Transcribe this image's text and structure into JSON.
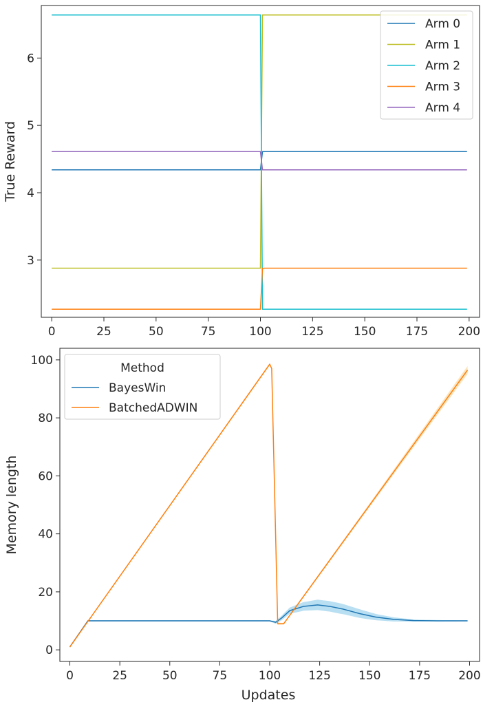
{
  "chart_data": [
    {
      "type": "line",
      "title": "",
      "xlabel": "",
      "ylabel": "True Reward",
      "xlim": [
        -5,
        205
      ],
      "ylim": [
        2.15,
        6.78
      ],
      "xticks": [
        0,
        25,
        50,
        75,
        100,
        125,
        150,
        175,
        200
      ],
      "yticks": [
        3,
        4,
        5,
        6
      ],
      "change_point": [
        100,
        101
      ],
      "legend_position": "top-right",
      "series": [
        {
          "name": "Arm 0",
          "color": "#1f77b4",
          "before": 4.34,
          "after": 4.61
        },
        {
          "name": "Arm 1",
          "color": "#bcbd22",
          "before": 2.88,
          "after": 6.64
        },
        {
          "name": "Arm 2",
          "color": "#17becf",
          "before": 6.64,
          "after": 2.27
        },
        {
          "name": "Arm 3",
          "color": "#ff7f0e",
          "before": 2.27,
          "after": 2.88
        },
        {
          "name": "Arm 4",
          "color": "#9467bd",
          "before": 4.61,
          "after": 4.34
        }
      ]
    },
    {
      "type": "line",
      "title": "",
      "xlabel": "Updates",
      "ylabel": "Memory length",
      "xlim": [
        -5,
        205
      ],
      "ylim": [
        -4,
        104
      ],
      "xticks": [
        0,
        25,
        50,
        75,
        100,
        125,
        150,
        175,
        200
      ],
      "yticks": [
        0,
        20,
        40,
        60,
        80,
        100
      ],
      "legend_title": "Method",
      "legend_position": "top-left",
      "series": [
        {
          "name": "BayesWin",
          "color": "#1f77b4",
          "band_color": "#7fc4e8",
          "points": [
            [
              0,
              1
            ],
            [
              9,
              10
            ],
            [
              100,
              10
            ],
            [
              103,
              9.5
            ],
            [
              106,
              11
            ],
            [
              110,
              13.5
            ],
            [
              117,
              15
            ],
            [
              124,
              15.5
            ],
            [
              130,
              15
            ],
            [
              137,
              14
            ],
            [
              145,
              12.5
            ],
            [
              153,
              11.3
            ],
            [
              162,
              10.5
            ],
            [
              172,
              10.1
            ],
            [
              185,
              10
            ],
            [
              199,
              10
            ]
          ],
          "band": [
            [
              100,
              0.2
            ],
            [
              106,
              0.8
            ],
            [
              115,
              1.4
            ],
            [
              124,
              1.8
            ],
            [
              135,
              1.8
            ],
            [
              145,
              1.5
            ],
            [
              155,
              1.0
            ],
            [
              165,
              0.6
            ],
            [
              175,
              0.3
            ],
            [
              199,
              0.2
            ]
          ]
        },
        {
          "name": "BatchedADWIN",
          "color": "#ff7f0e",
          "band_color": "#f5cf86",
          "points": [
            [
              0,
              1
            ],
            [
              100,
              98.5
            ],
            [
              101,
              97
            ],
            [
              104,
              9
            ],
            [
              107,
              9
            ],
            [
              199,
              96.5
            ]
          ],
          "band": [
            [
              0,
              0.2
            ],
            [
              100,
              0.4
            ],
            [
              107,
              0.3
            ],
            [
              150,
              0.6
            ],
            [
              175,
              1.0
            ],
            [
              199,
              1.4
            ]
          ]
        }
      ]
    }
  ]
}
